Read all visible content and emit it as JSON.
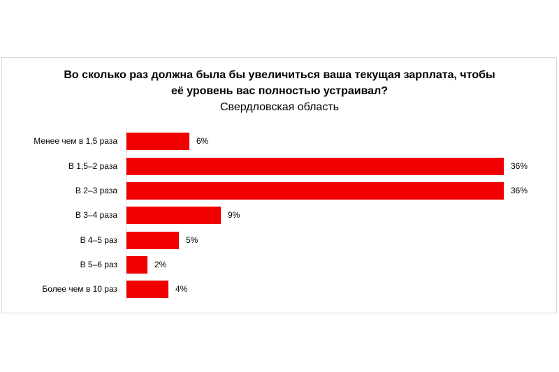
{
  "chart_data": {
    "type": "bar",
    "orientation": "horizontal",
    "title": "Во сколько раз должна была бы увеличиться ваша текущая зарплата, чтобы её уровень вас полностью устраивал?",
    "title_lines": [
      "Во сколько раз должна была бы увеличиться ваша текущая зарплата, чтобы",
      "её уровень вас полностью устраивал?"
    ],
    "subtitle": "Свердловская область",
    "categories": [
      "Менее чем в 1,5 раза",
      "В 1,5–2 раза",
      "В 2–3 раза",
      "В 3–4 раза",
      "В 4–5 раз",
      "В 5–6 раз",
      "Более чем в 10 раз"
    ],
    "values": [
      6,
      36,
      36,
      9,
      5,
      2,
      4
    ],
    "labels": [
      "6%",
      "36%",
      "36%",
      "9%",
      "5%",
      "2%",
      "4%"
    ],
    "unit": "%",
    "xlabel": "",
    "ylabel": "",
    "xlim": [
      0,
      36
    ],
    "grid": false,
    "legend": null,
    "bar_color": "#f00000"
  }
}
